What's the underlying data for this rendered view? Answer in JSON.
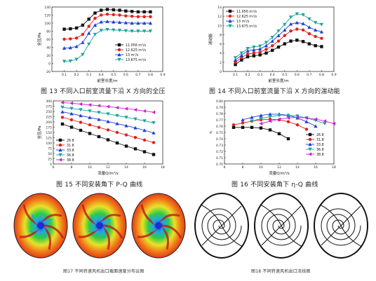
{
  "captions": {
    "fig13": "图 13  不同入口前室流量下沿 X 方向的全压",
    "fig14": "图 14  不同入口前室流量下沿 X 方向的湍动能",
    "fig15": "图 15  不同安装角下 P-Q 曲线",
    "fig16": "图 16  不同安装角下 η-Q 曲线",
    "fig17": "图17 不同转速风机出口截面速度分布云图",
    "fig18": "图18 不同转速风机出口流线图"
  },
  "chart_data": [
    {
      "id": "fig13",
      "type": "line",
      "xlabel": "前室长度/m",
      "ylabel": "全压/Pa",
      "xlim": [
        0.0,
        0.9
      ],
      "ylim": [
        -20,
        140
      ],
      "xticks": [
        "0.1",
        "0.2",
        "0.3",
        "0.4",
        "0.5",
        "0.6",
        "0.7",
        "0.8",
        "0.9"
      ],
      "yticks": [
        "-20",
        "0",
        "20",
        "40",
        "60",
        "80",
        "100",
        "120",
        "140"
      ],
      "x": [
        0.1,
        0.15,
        0.2,
        0.25,
        0.3,
        0.35,
        0.4,
        0.45,
        0.5,
        0.55,
        0.6,
        0.65,
        0.7,
        0.75,
        0.8
      ],
      "series": [
        {
          "name": "11.056 m³/s",
          "color": "#111111",
          "marker": "square",
          "values": [
            85,
            86,
            88,
            95,
            110,
            125,
            132,
            134,
            133,
            132,
            130,
            129,
            128,
            128,
            128
          ]
        },
        {
          "name": "12.625 m³/s",
          "color": "#e0201b",
          "marker": "circle",
          "values": [
            60,
            61,
            63,
            72,
            92,
            112,
            120,
            122,
            121,
            120,
            118,
            117,
            116,
            116,
            116
          ]
        },
        {
          "name": "13 m³/s",
          "color": "#1d3fd6",
          "marker": "triangle",
          "values": [
            38,
            39,
            42,
            52,
            75,
            95,
            103,
            104,
            103,
            102,
            101,
            100,
            100,
            100,
            100
          ]
        },
        {
          "name": "13.675 m³/s",
          "color": "#1aa39a",
          "marker": "triangle-down",
          "values": [
            5,
            6,
            10,
            22,
            48,
            72,
            82,
            84,
            83,
            82,
            81,
            80,
            80,
            80,
            80
          ]
        }
      ]
    },
    {
      "id": "fig14",
      "type": "line",
      "xlabel": "前室长度/m",
      "ylabel": "湍动能",
      "xlim": [
        0.0,
        0.9
      ],
      "ylim": [
        0,
        14
      ],
      "xticks": [
        "0.1",
        "0.2",
        "0.3",
        "0.4",
        "0.5",
        "0.6",
        "0.7",
        "0.8",
        "0.9"
      ],
      "yticks": [
        "0",
        "2",
        "4",
        "6",
        "8",
        "10",
        "12",
        "14"
      ],
      "x": [
        0.1,
        0.15,
        0.2,
        0.25,
        0.3,
        0.35,
        0.4,
        0.45,
        0.5,
        0.55,
        0.6,
        0.65,
        0.7,
        0.75,
        0.8
      ],
      "series": [
        {
          "name": "11.056 m³/s",
          "color": "#111111",
          "marker": "square",
          "values": [
            1.5,
            2.5,
            3.2,
            3.4,
            3.6,
            4.0,
            4.6,
            5.3,
            6.0,
            6.6,
            6.8,
            6.5,
            6.0,
            5.6,
            5.4
          ]
        },
        {
          "name": "12.625 m³/s",
          "color": "#e0201b",
          "marker": "circle",
          "values": [
            2.0,
            3.0,
            3.8,
            4.0,
            4.2,
            4.8,
            5.6,
            6.6,
            7.8,
            8.8,
            9.2,
            9.0,
            8.2,
            7.6,
            7.2
          ]
        },
        {
          "name": "13 m³/s",
          "color": "#1d3fd6",
          "marker": "triangle",
          "values": [
            2.5,
            3.5,
            4.5,
            4.7,
            4.9,
            5.6,
            6.6,
            7.8,
            9.0,
            10.3,
            10.6,
            10.4,
            9.6,
            9.0,
            8.6
          ]
        },
        {
          "name": "13.675 m³/s",
          "color": "#1aa39a",
          "marker": "triangle-down",
          "values": [
            3.0,
            4.0,
            5.0,
            5.3,
            5.5,
            6.3,
            7.4,
            8.8,
            10.2,
            11.8,
            12.5,
            12.3,
            11.4,
            10.6,
            10.2
          ]
        }
      ]
    },
    {
      "id": "fig15",
      "type": "line",
      "xlabel": "流量Q/m³/s",
      "ylabel": "全压/Pa",
      "xlim": [
        6,
        18
      ],
      "ylim": [
        0,
        300
      ],
      "xticks": [
        "6",
        "8",
        "10",
        "12",
        "14",
        "16",
        "18"
      ],
      "yticks": [
        "0",
        "25",
        "50",
        "75",
        "100",
        "125",
        "150",
        "175",
        "200",
        "225",
        "250",
        "275",
        "300"
      ],
      "series": [
        {
          "name": "26.8",
          "color": "#111111",
          "marker": "square",
          "x": [
            7,
            8,
            9,
            10,
            11,
            12,
            13,
            14,
            15,
            16,
            17
          ],
          "values": [
            190,
            175,
            160,
            145,
            130,
            115,
            100,
            85,
            72,
            58,
            45
          ]
        },
        {
          "name": "31.8",
          "color": "#e0201b",
          "marker": "circle",
          "x": [
            7,
            8,
            9,
            10,
            11,
            12,
            13,
            14,
            15,
            16,
            17
          ],
          "values": [
            222,
            210,
            198,
            186,
            174,
            162,
            150,
            138,
            126,
            114,
            102
          ]
        },
        {
          "name": "33.8",
          "color": "#1d3fd6",
          "marker": "triangle",
          "x": [
            7,
            8,
            9,
            10,
            11,
            12,
            13,
            14,
            15,
            16,
            17
          ],
          "values": [
            248,
            239,
            230,
            221,
            212,
            202,
            192,
            182,
            172,
            160,
            148
          ]
        },
        {
          "name": "36.8",
          "color": "#1aa39a",
          "marker": "triangle-down",
          "x": [
            7,
            8,
            9,
            10,
            11,
            12,
            13,
            14,
            15,
            16,
            17
          ],
          "values": [
            270,
            264,
            258,
            252,
            245,
            238,
            230,
            222,
            214,
            205,
            196
          ]
        },
        {
          "name": "38.8",
          "color": "#d21bd2",
          "marker": "triangle-left",
          "x": [
            7,
            8,
            9,
            10,
            11,
            12,
            13,
            14,
            15,
            16,
            17
          ],
          "values": [
            292,
            289,
            285,
            281,
            277,
            273,
            268,
            263,
            258,
            252,
            246
          ]
        }
      ]
    },
    {
      "id": "fig16",
      "type": "line",
      "xlabel": "流量Q/m³/s",
      "ylabel": "η",
      "xlim": [
        6,
        18
      ],
      "ylim": [
        0.7,
        0.8
      ],
      "xticks": [
        "6",
        "8",
        "10",
        "12",
        "14",
        "16",
        "18"
      ],
      "yticks": [
        "0.70",
        "0.71",
        "0.72",
        "0.73",
        "0.74",
        "0.75",
        "0.76",
        "0.77",
        "0.78",
        "0.79",
        "0.80"
      ],
      "series": [
        {
          "name": "26.8",
          "color": "#111111",
          "marker": "square",
          "x": [
            7,
            8,
            9,
            10,
            11,
            12,
            13
          ],
          "values": [
            0.758,
            0.758,
            0.758,
            0.757,
            0.754,
            0.748,
            0.74
          ]
        },
        {
          "name": "31.8",
          "color": "#e0201b",
          "marker": "circle",
          "x": [
            7,
            8,
            9,
            10,
            11,
            12,
            13,
            14,
            15
          ],
          "values": [
            0.762,
            0.765,
            0.768,
            0.77,
            0.771,
            0.77,
            0.767,
            0.762,
            0.755
          ]
        },
        {
          "name": "33.8",
          "color": "#1d3fd6",
          "marker": "triangle",
          "x": [
            8,
            9,
            10,
            11,
            12,
            13,
            14,
            15,
            16
          ],
          "values": [
            0.77,
            0.774,
            0.777,
            0.779,
            0.779,
            0.777,
            0.773,
            0.767,
            0.76
          ]
        },
        {
          "name": "36.8",
          "color": "#1aa39a",
          "marker": "triangle-down",
          "x": [
            9,
            10,
            11,
            12,
            13,
            14,
            15,
            16,
            17
          ],
          "values": [
            0.768,
            0.772,
            0.775,
            0.777,
            0.777,
            0.776,
            0.773,
            0.769,
            0.764
          ]
        },
        {
          "name": "38.8",
          "color": "#d21bd2",
          "marker": "triangle-left",
          "x": [
            10,
            11,
            12,
            13,
            14,
            15,
            16,
            17,
            18
          ],
          "values": [
            0.764,
            0.768,
            0.771,
            0.773,
            0.774,
            0.773,
            0.771,
            0.768,
            0.764
          ]
        }
      ]
    }
  ],
  "images": {
    "fig17_count": 3,
    "fig18_count": 3
  }
}
